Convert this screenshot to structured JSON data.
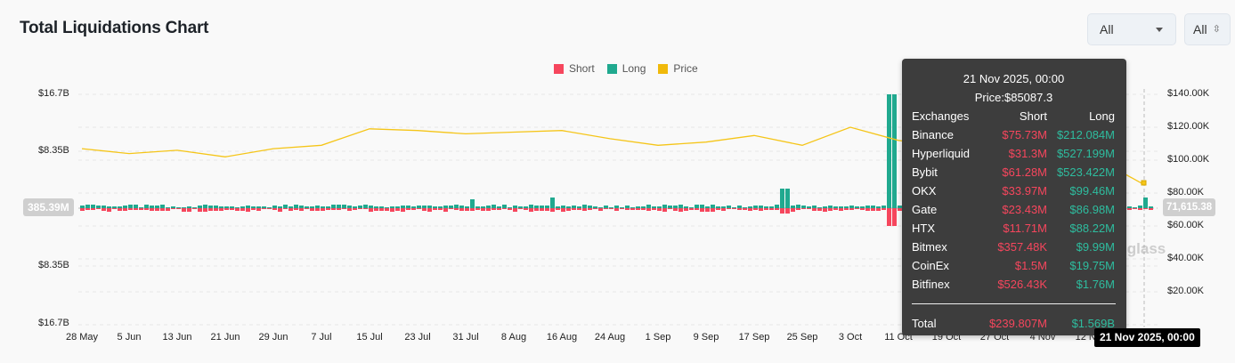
{
  "header": {
    "title": "Total Liquidations Chart",
    "range_select": "All",
    "type_select": "All"
  },
  "colors": {
    "short": "#f6465d",
    "long": "#20a98f",
    "price": "#f0b90b"
  },
  "chart_data": {
    "type": "bar",
    "title": "Total Liquidations Chart",
    "legend": [
      "Short",
      "Long",
      "Price"
    ],
    "legend_position": "top-center",
    "grid": true,
    "x_ticks": [
      "28 May",
      "5 Jun",
      "13 Jun",
      "21 Jun",
      "29 Jun",
      "7 Jul",
      "15 Jul",
      "23 Jul",
      "31 Jul",
      "8 Aug",
      "16 Aug",
      "24 Aug",
      "1 Sep",
      "9 Sep",
      "17 Sep",
      "25 Sep",
      "3 Oct",
      "11 Oct",
      "19 Oct",
      "27 Oct",
      "4 Nov",
      "12 Nov",
      "21 Nov 2025, 00:00"
    ],
    "y_left_ticks": [
      "$16.7B",
      "$8.35B",
      "385.39M",
      "$8.35B",
      "$16.7B"
    ],
    "y_left_range": [
      "-16.7B",
      "16.7B"
    ],
    "y_right_ticks": [
      "$140.00K",
      "$120.00K",
      "$100.00K",
      "$80.00K",
      "71,615.38",
      "$60.00K",
      "$40.00K",
      "$20.00K"
    ],
    "y_right_range": [
      0,
      140000
    ],
    "crosshair_left_value": "385.39M",
    "crosshair_right_value": "71,615.38",
    "series": [
      {
        "name": "Long",
        "note": "mostly small bars; spikes near 23 Jul, 15 Aug, 22 Sep, 11 Oct (~$16B)"
      },
      {
        "name": "Short",
        "note": "small negative bars; largest near 11 Oct (~$3B)"
      },
      {
        "name": "Price",
        "axis": "right",
        "approx_points": [
          [
            "28 May",
            107000
          ],
          [
            "5 Jun",
            104000
          ],
          [
            "13 Jun",
            106000
          ],
          [
            "21 Jun",
            102000
          ],
          [
            "29 Jun",
            107000
          ],
          [
            "7 Jul",
            109000
          ],
          [
            "15 Jul",
            119000
          ],
          [
            "23 Jul",
            118000
          ],
          [
            "31 Jul",
            116000
          ],
          [
            "8 Aug",
            117000
          ],
          [
            "16 Aug",
            118000
          ],
          [
            "24 Aug",
            113000
          ],
          [
            "1 Sep",
            109000
          ],
          [
            "9 Sep",
            111000
          ],
          [
            "17 Sep",
            115000
          ],
          [
            "25 Sep",
            109000
          ],
          [
            "3 Oct",
            120000
          ],
          [
            "11 Oct",
            112000
          ],
          [
            "19 Oct",
            108000
          ],
          [
            "27 Oct",
            114000
          ],
          [
            "4 Nov",
            103000
          ],
          [
            "12 Nov",
            103000
          ],
          [
            "21 Nov 2025, 00:00",
            85087.3
          ]
        ]
      }
    ],
    "tooltip": {
      "date": "21 Nov 2025, 00:00",
      "price": "Price:$85087.3",
      "columns": [
        "Exchanges",
        "Short",
        "Long"
      ],
      "rows": [
        [
          "Binance",
          "$75.73M",
          "$212.084M"
        ],
        [
          "Hyperliquid",
          "$31.3M",
          "$527.199M"
        ],
        [
          "Bybit",
          "$61.28M",
          "$523.422M"
        ],
        [
          "OKX",
          "$33.97M",
          "$99.46M"
        ],
        [
          "Gate",
          "$23.43M",
          "$86.98M"
        ],
        [
          "HTX",
          "$11.71M",
          "$88.22M"
        ],
        [
          "Bitmex",
          "$357.48K",
          "$9.99M"
        ],
        [
          "CoinEx",
          "$1.5M",
          "$19.75M"
        ],
        [
          "Bitfinex",
          "$526.43K",
          "$1.76M"
        ]
      ],
      "total": [
        "Total",
        "$239.807M",
        "$1.569B"
      ]
    }
  },
  "watermark": "coinglass"
}
